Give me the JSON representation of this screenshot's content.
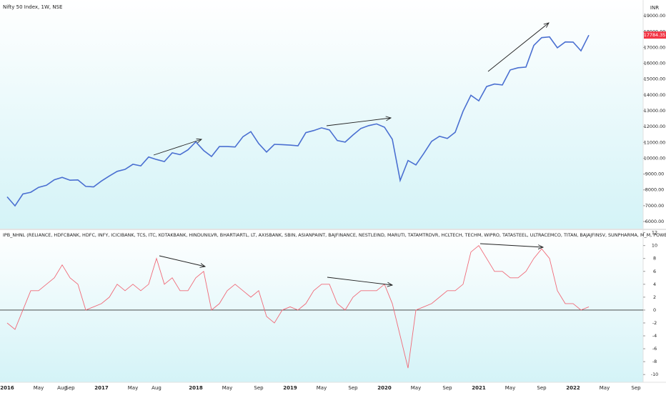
{
  "chart_data": [
    {
      "type": "line",
      "title": "Nifty 50 Index, 1W, NSE",
      "currency": "INR",
      "series": [
        {
          "name": "Nifty 50",
          "color": "#4a6fd1",
          "values": [
            7560,
            6990,
            7740,
            7850,
            8160,
            8290,
            8640,
            8790,
            8610,
            8630,
            8220,
            8190,
            8560,
            8880,
            9170,
            9300,
            9620,
            9520,
            10080,
            9920,
            9790,
            10340,
            10230,
            10530,
            11030,
            10490,
            10110,
            10740,
            10740,
            10710,
            11360,
            11680,
            10930,
            10390,
            10880,
            10860,
            10830,
            10790,
            11620,
            11750,
            11920,
            11790,
            11120,
            11020,
            11470,
            11880,
            12060,
            12170,
            11960,
            11200,
            8600,
            9860,
            9580,
            10300,
            11070,
            11390,
            11250,
            11640,
            12970,
            13980,
            13630,
            14530,
            14690,
            14630,
            15580,
            15720,
            15760,
            17130,
            17620,
            17670,
            16980,
            17350,
            17340,
            16790,
            17780,
            null,
            null,
            null,
            null,
            null,
            null
          ]
        }
      ],
      "last_value": 17784.35,
      "last_value_color": "#f23645",
      "ylim": [
        5550,
        20000
      ],
      "yticks": [
        {
          "value": 6000,
          "label": "6000.00"
        },
        {
          "value": 7000,
          "label": "7000.00"
        },
        {
          "value": 8000,
          "label": "8000.00"
        },
        {
          "value": 9000,
          "label": "9000.00"
        },
        {
          "value": 10000,
          "label": "10000.00"
        },
        {
          "value": 11000,
          "label": "11000.00"
        },
        {
          "value": 12000,
          "label": "12000.00"
        },
        {
          "value": 13000,
          "label": "13000.00"
        },
        {
          "value": 14000,
          "label": "14000.00"
        },
        {
          "value": 15000,
          "label": "15000.00"
        },
        {
          "value": 16000,
          "label": "16000.00"
        },
        {
          "value": 17000,
          "label": "17000.00"
        },
        {
          "value": 18000,
          "label": "18000.00"
        },
        {
          "value": 19000,
          "label": "19000.00"
        }
      ]
    },
    {
      "type": "line",
      "title": "IPB_NHNL (RELIANCE, HDFCBANK, HDFC, INFY, ICICIBANK, TCS, ITC, KOTAKBANK, HINDUNILVR, BHARTIARTL, LT, AXISBANK, SBIN, ASIANPAINT, BAJFINANCE, NESTLEIND, MARUTI, TATAMTRDVR, HCLTECH, TECHM, WIPRO, TATASTEEL, ULTRACEMCO, TITAN, BAJAJFINSV, SUNPHARMA, M_M, POWERGRID, HDFCLIFE, HINDALCO, NTPC, ADANIPORTS, JSWSTEEL, DIVISLAB, GRASI",
      "categories": [
        "2016",
        null,
        null,
        null,
        "May",
        null,
        null,
        "Aug",
        "Sep",
        null,
        null,
        null,
        "2017",
        null,
        null,
        null,
        "May",
        null,
        null,
        "Aug",
        null,
        null,
        null,
        null,
        "2018",
        null,
        null,
        null,
        "May",
        null,
        null,
        null,
        "Sep",
        null,
        null,
        null,
        "2019",
        null,
        null,
        null,
        "May",
        null,
        null,
        null,
        "Sep",
        null,
        null,
        null,
        "2020",
        null,
        null,
        null,
        "May",
        null,
        null,
        null,
        "Sep",
        null,
        null,
        null,
        "2021",
        null,
        null,
        null,
        "May",
        null,
        null,
        null,
        "Sep",
        null,
        null,
        null,
        "2022",
        null,
        null,
        null,
        "May",
        null,
        null,
        null,
        "Sep"
      ],
      "series": [
        {
          "name": "IPB_NHNL",
          "color": "#f06a78",
          "values": [
            -2,
            -3,
            0,
            3,
            3,
            4,
            5,
            7,
            5,
            4,
            0,
            0.5,
            1,
            2,
            4,
            3,
            4,
            3,
            4,
            8,
            4,
            5,
            3,
            3,
            5,
            6,
            0,
            1,
            3,
            4,
            3,
            2,
            3,
            -1,
            -2,
            0,
            0.5,
            0,
            1,
            3,
            4,
            4,
            1,
            0,
            2,
            3,
            3,
            3,
            4,
            1,
            -4,
            -9,
            0,
            0.5,
            1,
            2,
            3,
            3,
            4,
            9,
            10,
            8,
            6,
            6,
            5,
            5,
            6,
            8,
            9.5,
            8,
            3,
            1,
            1,
            0,
            0.5,
            null,
            null,
            null,
            null,
            null,
            null
          ]
        }
      ],
      "hline": 0,
      "ylim": [
        -11.2,
        12.4
      ],
      "yticks": [
        -10,
        -8,
        -6,
        -4,
        -2,
        0,
        2,
        4,
        6,
        8,
        10,
        12
      ]
    }
  ]
}
